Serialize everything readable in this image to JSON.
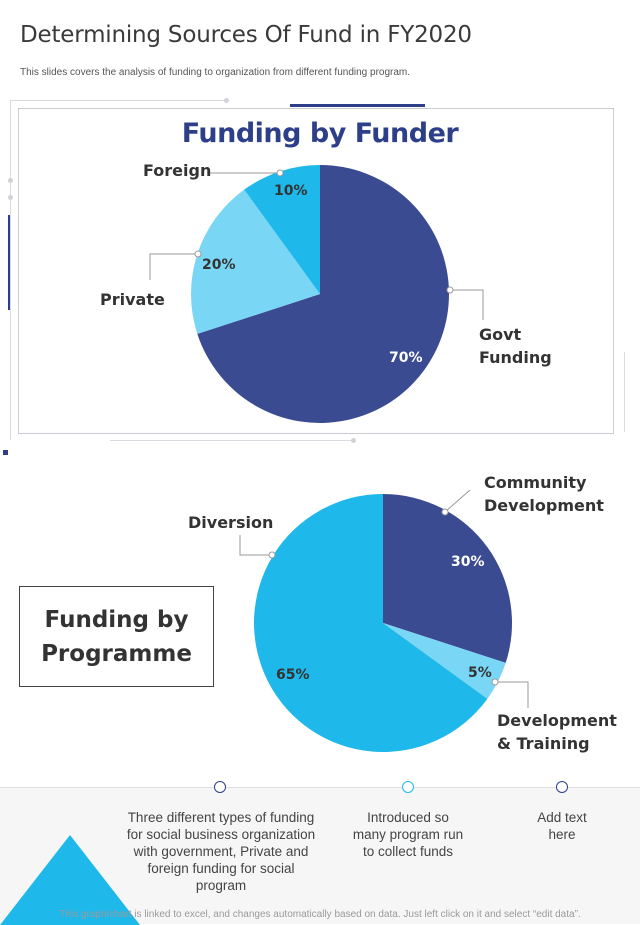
{
  "header": {
    "title": "Determining Sources Of Fund in FY2020",
    "subtitle": "This slides covers the analysis of funding to organization from different funding program."
  },
  "colors": {
    "dark_blue": "#3a4b91",
    "light_blue": "#79d6f5",
    "sky_blue": "#1fb8ea",
    "text": "#333333"
  },
  "chart_data": [
    {
      "type": "pie",
      "title": "Funding by Funder",
      "categories": [
        "Govt Funding",
        "Private",
        "Foreign"
      ],
      "values": [
        70,
        20,
        10
      ],
      "value_labels": [
        "70%",
        "20%",
        "10%"
      ],
      "label_lines": [
        [
          "Govt",
          "Funding"
        ],
        [
          "Private"
        ],
        [
          "Foreign"
        ]
      ],
      "colors": [
        "#3a4b91",
        "#79d6f5",
        "#1fb8ea"
      ]
    },
    {
      "type": "pie",
      "title": "Funding by Programme",
      "title_lines": [
        "Funding by",
        "Programme"
      ],
      "categories": [
        "Community Development",
        "Development & Training",
        "Diversion"
      ],
      "values": [
        30,
        5,
        65
      ],
      "value_labels": [
        "30%",
        "5%",
        "65%"
      ],
      "label_lines": [
        [
          "Community",
          "Development"
        ],
        [
          "Development",
          "& Training"
        ],
        [
          "Diversion"
        ]
      ],
      "colors": [
        "#3a4b91",
        "#79d6f5",
        "#1fb8ea"
      ]
    }
  ],
  "notes": [
    {
      "text": "Three different types of funding for social business organization with government, Private and foreign funding for social program"
    },
    {
      "text": "Introduced so many program run to collect funds"
    },
    {
      "text": "Add text here"
    }
  ],
  "footer": "This graph/chart is linked to excel, and changes automatically based on data. Just left click on it and select “edit data”."
}
